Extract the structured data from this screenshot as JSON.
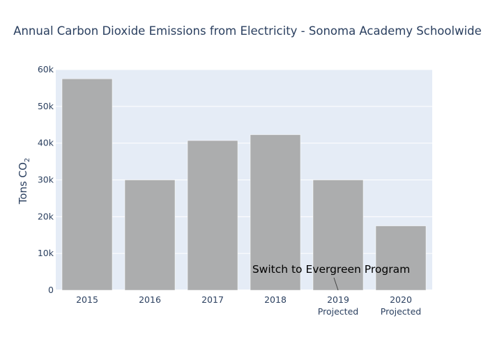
{
  "chart_data": {
    "type": "bar",
    "title": "Annual Carbon Dioxide Emissions from Electricity - Sonoma Academy Schoolwide",
    "ylabel_main": "Tons CO",
    "ylabel_sub": "2",
    "xlabel": "",
    "categories": [
      {
        "line1": "2015",
        "line2": ""
      },
      {
        "line1": "2016",
        "line2": ""
      },
      {
        "line1": "2017",
        "line2": ""
      },
      {
        "line1": "2018",
        "line2": ""
      },
      {
        "line1": "2019",
        "line2": "Projected"
      },
      {
        "line1": "2020",
        "line2": "Projected"
      }
    ],
    "values": [
      57500,
      30000,
      40700,
      42300,
      30000,
      17500
    ],
    "ylim": [
      0,
      60000
    ],
    "yticks": [
      0,
      10000,
      20000,
      30000,
      40000,
      50000,
      60000
    ],
    "ytick_labels": [
      "0",
      "10k",
      "20k",
      "30k",
      "40k",
      "50k",
      "60k"
    ],
    "grid": true,
    "legend": "none",
    "annotation": {
      "text": "Switch to Evergreen Program",
      "category_index": 4,
      "value": 0
    },
    "colors": {
      "bar": "#acadae",
      "plot_bg": "#e5ecf6",
      "grid": "#ffffff",
      "text": "#2a3f5f"
    }
  }
}
